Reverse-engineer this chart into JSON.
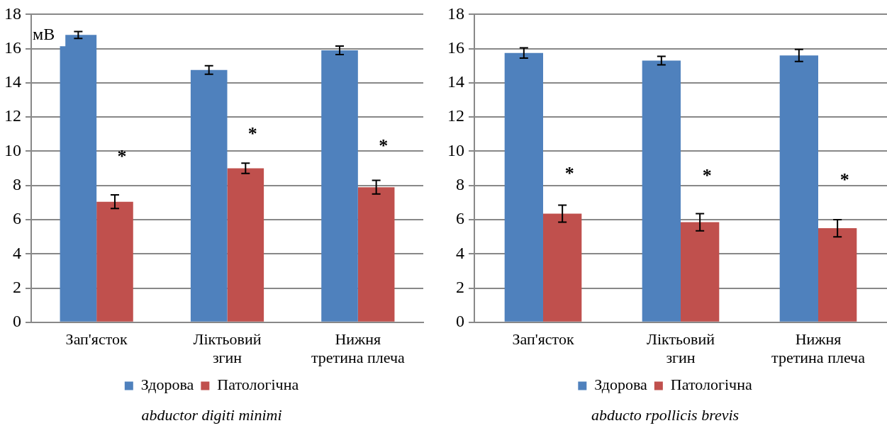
{
  "chart_data": [
    {
      "type": "bar",
      "title": "abductor digiti minimi",
      "ylabel": "мВ",
      "categories": [
        "Зап'ясток",
        "Ліктьовий\nзгин",
        "Нижня\nтретина плеча"
      ],
      "series": [
        {
          "name": "Здорова",
          "color": "#4f81bd",
          "values": [
            16.8,
            14.75,
            15.9
          ],
          "errors": [
            0.2,
            0.25,
            0.25
          ]
        },
        {
          "name": "Патологічна",
          "color": "#c0504d",
          "values": [
            7.05,
            9.0,
            7.9
          ],
          "errors": [
            0.4,
            0.3,
            0.4
          ]
        }
      ],
      "ylim": [
        0,
        18
      ],
      "yticks": [
        0,
        2,
        4,
        6,
        8,
        10,
        12,
        14,
        16,
        18
      ],
      "grid": "y",
      "legend": "bottom",
      "annotations": [
        {
          "text": "*",
          "x": "Зап'ясток",
          "y": 9.9
        },
        {
          "text": "*",
          "x": "Ліктьовий\nзгин",
          "y": 11.2
        },
        {
          "text": "*",
          "x": "Нижня\nтретина плеча",
          "y": 10.5
        }
      ]
    },
    {
      "type": "bar",
      "title": "abducto rpollicis brevis",
      "categories": [
        "Зап'ясток",
        "Ліктьовий\nзгин",
        "Нижня\nтретина плеча"
      ],
      "series": [
        {
          "name": "Здорова",
          "color": "#4f81bd",
          "values": [
            15.75,
            15.3,
            15.6
          ],
          "errors": [
            0.3,
            0.25,
            0.35
          ]
        },
        {
          "name": "Патологічна",
          "color": "#c0504d",
          "values": [
            6.35,
            5.85,
            5.5
          ],
          "errors": [
            0.5,
            0.5,
            0.5
          ]
        }
      ],
      "ylim": [
        0,
        18
      ],
      "yticks": [
        0,
        2,
        4,
        6,
        8,
        10,
        12,
        14,
        16,
        18
      ],
      "grid": "y",
      "legend": "bottom",
      "annotations": [
        {
          "text": "*",
          "x": "Зап'ясток",
          "y": 8.9
        },
        {
          "text": "*",
          "x": "Ліктьовий\nзгин",
          "y": 8.75
        },
        {
          "text": "*",
          "x": "Нижня\nтретина плеча",
          "y": 8.5
        }
      ]
    }
  ]
}
